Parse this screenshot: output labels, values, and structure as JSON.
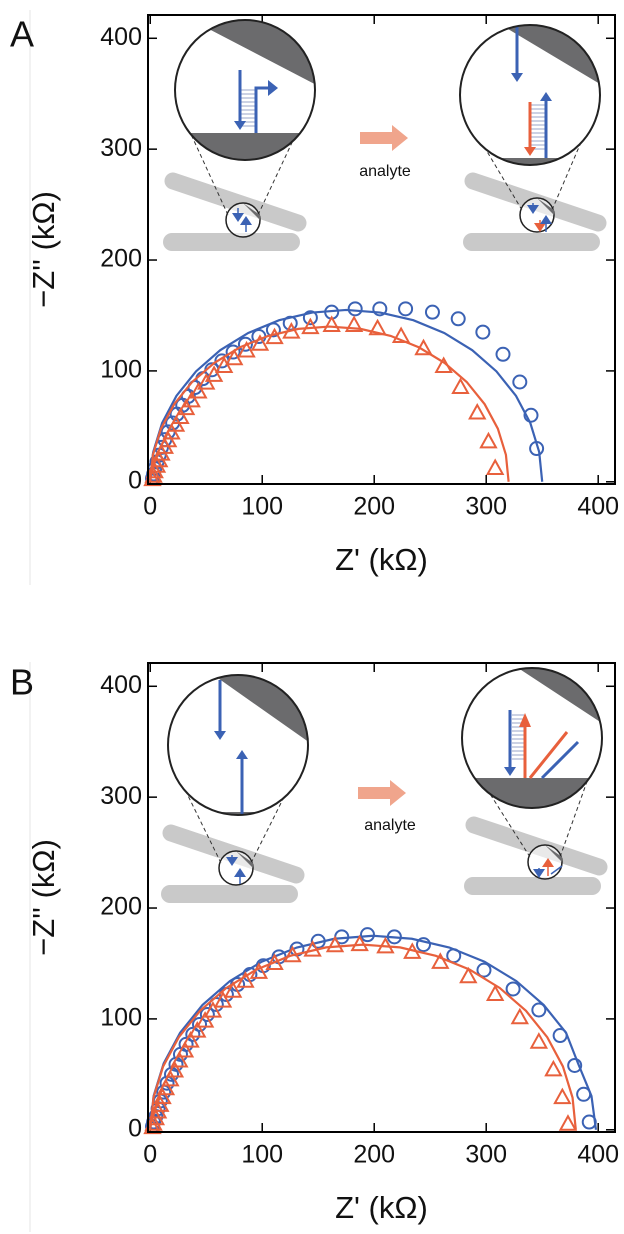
{
  "chart_data": [
    {
      "type": "scatter",
      "panel_label": "A",
      "annotation": "analyte",
      "xlabel": "Z' (kΩ)",
      "ylabel": "−Z'' (kΩ)",
      "xlim": [
        -2,
        415
      ],
      "ylim": [
        -2,
        421
      ],
      "xticks": [
        0,
        100,
        200,
        300,
        400
      ],
      "yticks": [
        0,
        100,
        200,
        300,
        400
      ],
      "series": [
        {
          "color": "#3b62b4",
          "marker": "circle",
          "x": [
            345,
            340,
            330,
            315,
            297,
            275,
            252,
            228,
            205,
            183,
            162,
            143,
            125,
            110,
            97,
            85,
            74,
            64,
            55,
            47,
            40,
            34,
            29,
            24,
            20,
            16,
            13,
            10,
            8,
            6,
            4,
            3,
            2
          ],
          "values": [
            30,
            60,
            90,
            115,
            135,
            147,
            153,
            156,
            156,
            156,
            153,
            148,
            143,
            137,
            131,
            124,
            117,
            109,
            101,
            93,
            85,
            77,
            69,
            61,
            53,
            45,
            38,
            31,
            24,
            18,
            12,
            7,
            3
          ]
        },
        {
          "color": "#3b62b4",
          "marker": "none",
          "x": [
            350,
            347.3,
            339.4,
            326.6,
            309.1,
            287.5,
            262.5,
            234.9,
            205.4,
            175,
            144.6,
            115.1,
            87.5,
            62.5,
            40.9,
            23.4,
            10.6,
            2.7,
            0
          ],
          "values": [
            0,
            26.9,
            53,
            77.5,
            99.6,
            118.7,
            134.2,
            145.7,
            152.6,
            155,
            152.6,
            145.7,
            134.2,
            118.7,
            99.6,
            77.5,
            53,
            26.9,
            0
          ]
        },
        {
          "color": "#e8603c",
          "marker": "triangle",
          "x": [
            308,
            302,
            292,
            277,
            262,
            244,
            224,
            203,
            182,
            162,
            143,
            126,
            111,
            98,
            86,
            75,
            66,
            57,
            50,
            43,
            37,
            32,
            27,
            23,
            19,
            16,
            13,
            10,
            8,
            6,
            4,
            3,
            2
          ],
          "values": [
            12,
            36,
            62,
            85,
            104,
            120,
            131,
            138,
            141,
            141,
            139,
            135,
            130,
            124,
            118,
            111,
            104,
            96,
            89,
            81,
            73,
            66,
            58,
            51,
            44,
            37,
            31,
            25,
            19,
            14,
            9,
            5,
            2
          ]
        },
        {
          "color": "#e8603c",
          "marker": "none",
          "x": [
            320,
            317.6,
            310.4,
            298.6,
            282.6,
            262.8,
            240,
            214.7,
            187.8,
            160,
            132.2,
            105.3,
            80,
            57.2,
            37.4,
            21.4,
            9.6,
            2.4,
            0
          ],
          "values": [
            0,
            24.3,
            47.9,
            70,
            90,
            107.2,
            121.2,
            131.6,
            137.9,
            140,
            137.9,
            131.6,
            121.2,
            107.2,
            90,
            70,
            47.9,
            24.3,
            0
          ]
        }
      ]
    },
    {
      "type": "scatter",
      "panel_label": "B",
      "annotation": "analyte",
      "xlabel": "Z' (kΩ)",
      "ylabel": "−Z'' (kΩ)",
      "xlim": [
        -2,
        415
      ],
      "ylim": [
        -2,
        421
      ],
      "xticks": [
        0,
        100,
        200,
        300,
        400
      ],
      "yticks": [
        0,
        100,
        200,
        300,
        400
      ],
      "series": [
        {
          "color": "#3b62b4",
          "marker": "circle",
          "x": [
            392,
            387,
            379,
            366,
            347,
            324,
            298,
            271,
            244,
            218,
            194,
            171,
            150,
            131,
            115,
            101,
            89,
            78,
            68,
            59,
            51,
            44,
            38,
            32,
            27,
            23,
            19,
            15,
            12,
            9,
            7,
            5,
            3,
            2
          ],
          "values": [
            7,
            32,
            58,
            85,
            108,
            127,
            144,
            157,
            167,
            174,
            176,
            174,
            170,
            163,
            156,
            148,
            140,
            131,
            122,
            113,
            104,
            95,
            86,
            77,
            68,
            59,
            50,
            42,
            34,
            26,
            19,
            12,
            7,
            3
          ]
        },
        {
          "color": "#3b62b4",
          "marker": "none",
          "x": [
            398,
            394,
            382,
            371.3,
            351.4,
            326.9,
            298.5,
            267.1,
            233.6,
            199,
            164.4,
            130.9,
            99.5,
            71.1,
            46.6,
            26.7,
            12,
            3,
            0
          ],
          "values": [
            0,
            30.4,
            59.9,
            87.5,
            112.5,
            134.1,
            151.6,
            164.4,
            172.3,
            175,
            172.3,
            164.4,
            151.6,
            134.1,
            112.5,
            87.5,
            59.9,
            30.4,
            0
          ]
        },
        {
          "color": "#e8603c",
          "marker": "triangle",
          "x": [
            373,
            368,
            360,
            347,
            330,
            308,
            284,
            259,
            234,
            210,
            187,
            165,
            145,
            127,
            111,
            97,
            85,
            74,
            65,
            56,
            49,
            42,
            36,
            31,
            26,
            22,
            18,
            14,
            11,
            9,
            7,
            5,
            3,
            2
          ],
          "values": [
            5,
            29,
            54,
            79,
            101,
            122,
            138,
            151,
            160,
            165,
            167,
            166,
            162,
            157,
            150,
            142,
            134,
            125,
            116,
            107,
            98,
            89,
            80,
            71,
            62,
            53,
            45,
            37,
            29,
            22,
            16,
            10,
            5,
            2
          ]
        },
        {
          "color": "#e8603c",
          "marker": "none",
          "x": [
            380,
            377.1,
            368.5,
            354.5,
            335.5,
            312.1,
            285,
            255,
            223,
            190,
            157,
            125,
            95,
            67.9,
            44.5,
            25.5,
            11.5,
            2.9,
            0
          ],
          "values": [
            0,
            29,
            57.1,
            83.5,
            107.3,
            127.9,
            144.6,
            156.9,
            164.5,
            167,
            164.5,
            156.9,
            144.6,
            127.9,
            107.3,
            83.5,
            57.1,
            29,
            0
          ]
        }
      ]
    }
  ]
}
